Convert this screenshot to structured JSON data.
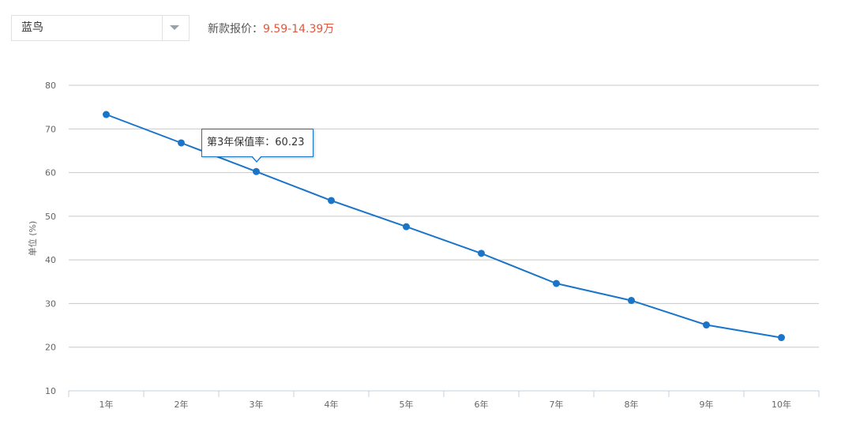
{
  "selector": {
    "value": "蓝鸟"
  },
  "price": {
    "label": "新款报价：",
    "value": "9.59-14.39万"
  },
  "colors": {
    "line": "#1a75c9",
    "price": "#e2573c",
    "grid": "#c8c8c8"
  },
  "chart_data": {
    "type": "line",
    "categories": [
      "1年",
      "2年",
      "3年",
      "4年",
      "5年",
      "6年",
      "7年",
      "8年",
      "9年",
      "10年"
    ],
    "values": [
      73.3,
      66.8,
      60.23,
      53.6,
      47.6,
      41.5,
      34.6,
      30.7,
      25.1,
      22.2
    ],
    "ylabel": "单位 (%)",
    "ylim": [
      10,
      80
    ],
    "yticks": [
      10,
      20,
      30,
      40,
      50,
      60,
      70,
      80
    ],
    "grid": true,
    "tooltip": {
      "text": "第3年保值率：60.23",
      "index": 2
    }
  }
}
